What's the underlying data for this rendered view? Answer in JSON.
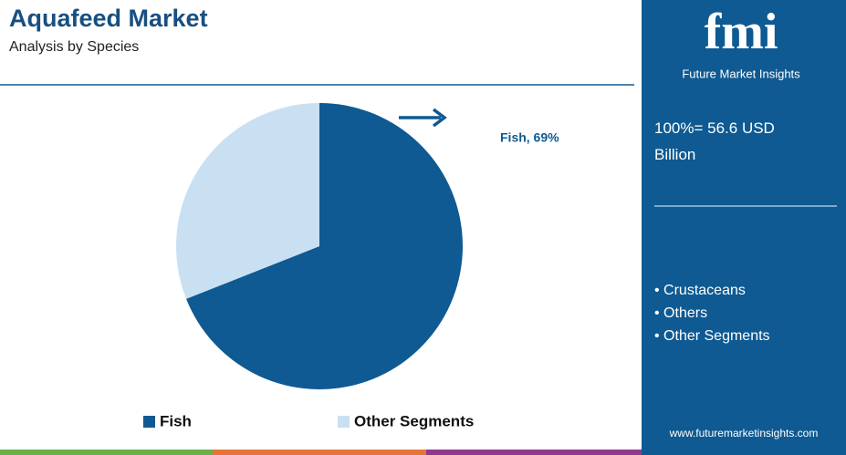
{
  "chart_data": {
    "type": "pie",
    "title": "Aquafeed Market",
    "subtitle": "Analysis by Species",
    "categories": [
      "Fish",
      "Other Segments"
    ],
    "values": [
      69,
      31
    ],
    "colors": [
      "#0f5a92",
      "#c9e0f3"
    ],
    "value_labels": [
      "Fish, 69%",
      null
    ],
    "legend": "bottom",
    "panel": {
      "brand": "fmi",
      "brand_name": "Future Market Insights",
      "total": "100%= 56.6 USD Billion",
      "segments": [
        "Crustaceans",
        "Others",
        "Other Segments"
      ],
      "website": "www.futuremarketinsights.com"
    }
  }
}
